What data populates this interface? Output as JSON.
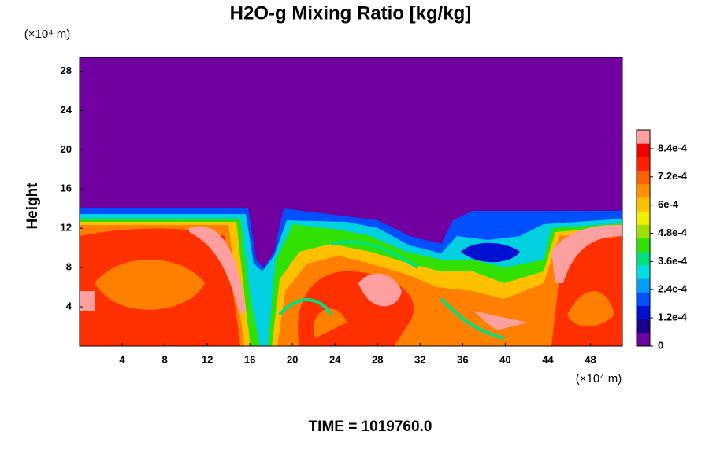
{
  "chart_data": {
    "type": "contour",
    "title": "H2O-g Mixing Ratio [kg/kg]",
    "ylabel": "Height",
    "xunit": "(×10⁴ m)",
    "yunit": "(×10⁴ m)",
    "footer": "TIME = 1019760.0",
    "xlim": [
      0,
      51
    ],
    "xticks": [
      4,
      8,
      12,
      16,
      20,
      24,
      28,
      32,
      36,
      40,
      44,
      48
    ],
    "ylim": [
      0,
      29.4
    ],
    "yticks": [
      4,
      8,
      12,
      16,
      20,
      24,
      28
    ],
    "clim": [
      0,
      0.00092
    ],
    "cticks": [
      0,
      {
        "value": 0.00012,
        "label": "1.2e-4"
      },
      {
        "value": 0.00024,
        "label": "2.4e-4"
      },
      {
        "value": 0.00036,
        "label": "3.6e-4"
      },
      {
        "value": 0.00048,
        "label": "4.8e-4"
      },
      {
        "value": 0.0006,
        "label": "6e-4"
      },
      {
        "value": 0.00072,
        "label": "7.2e-4"
      },
      {
        "value": 0.00084,
        "label": "8.4e-4"
      }
    ],
    "colormap": [
      "#7000a0",
      "#1a0090",
      "#0010d0",
      "#0050ff",
      "#00a0ff",
      "#00e0e0",
      "#00e080",
      "#30e000",
      "#a0e000",
      "#f0f000",
      "#ffc000",
      "#ff9000",
      "#ff6000",
      "#ff2000",
      "#f00000",
      "#ffa0a0"
    ]
  }
}
